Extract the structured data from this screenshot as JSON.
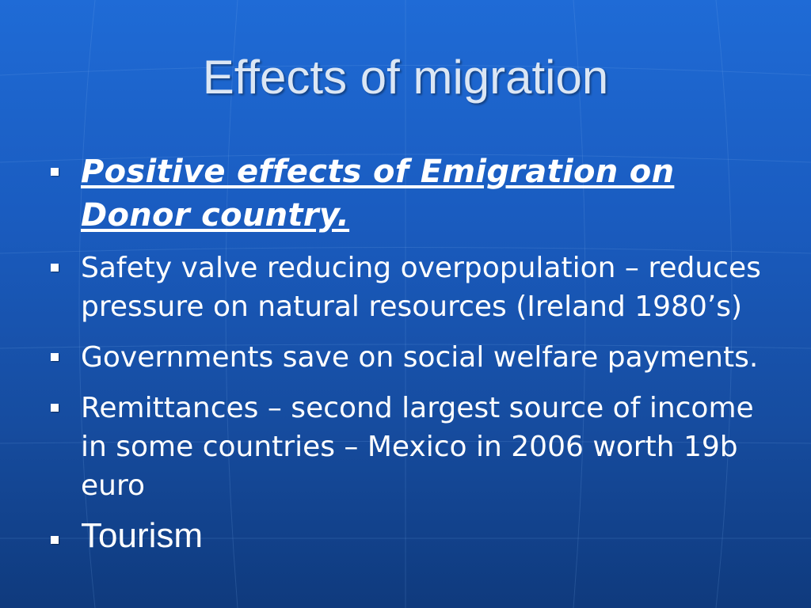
{
  "slide": {
    "title": "Effects of migration",
    "bullets": [
      {
        "text": "Positive effects of Emigration on Donor country."
      },
      {
        "text": "Safety valve reducing overpopulation – reduces pressure on natural resources (Ireland 1980’s)"
      },
      {
        "text": "Governments save on social welfare payments."
      },
      {
        "text": "Remittances – second largest source of income in some countries – Mexico in 2006 worth 19b euro"
      },
      {
        "text": "Tourism"
      }
    ]
  },
  "colors": {
    "background_top": "#1f6bd6",
    "background_bottom": "#0f3a7d",
    "title": "#dbe6f4",
    "body_text": "#ffffff"
  }
}
